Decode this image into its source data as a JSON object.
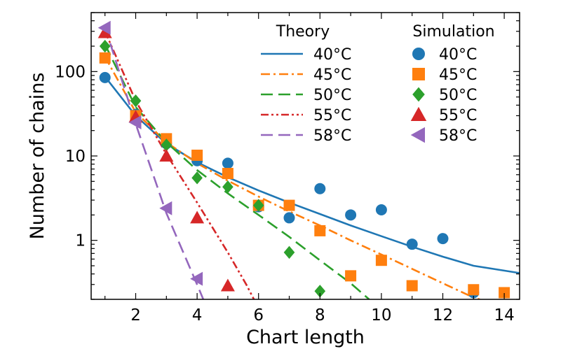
{
  "chart_data": {
    "type": "scatter",
    "xlabel": "Chart length",
    "ylabel": "Number of chains",
    "xlim": [
      0.55,
      14.5
    ],
    "ylim": [
      0.2,
      500
    ],
    "yscale": "log",
    "xticks": [
      2,
      4,
      6,
      8,
      10,
      12,
      14
    ],
    "yticks": [
      1,
      10,
      100
    ],
    "ytick_labels": [
      "1",
      "10",
      "100"
    ],
    "legend_theory_title": "Theory",
    "legend_sim_title": "Simulation",
    "series": [
      {
        "name": "40°C",
        "color": "#1f77b4",
        "marker": "circle",
        "line_style": "solid",
        "simulation": [
          [
            1,
            85
          ],
          [
            2,
            31
          ],
          [
            3,
            14
          ],
          [
            4,
            8.8
          ],
          [
            5,
            8.2
          ],
          [
            6,
            2.5
          ],
          [
            7,
            1.85
          ],
          [
            8,
            4.1
          ],
          [
            9,
            2.0
          ],
          [
            10,
            2.3
          ],
          [
            11,
            0.9
          ],
          [
            12,
            1.05
          ],
          [
            13,
            0.24
          ]
        ],
        "theory": [
          [
            1,
            87
          ],
          [
            2,
            30
          ],
          [
            3,
            14
          ],
          [
            4,
            8.4
          ],
          [
            5,
            5.6
          ],
          [
            6,
            3.9
          ],
          [
            7,
            2.8
          ],
          [
            8,
            2.05
          ],
          [
            9,
            1.5
          ],
          [
            10,
            1.12
          ],
          [
            11,
            0.84
          ],
          [
            12,
            0.64
          ],
          [
            13,
            0.5
          ],
          [
            14.5,
            0.41
          ]
        ]
      },
      {
        "name": "45°C",
        "color": "#ff7f0e",
        "marker": "square",
        "line_style": "dashdot",
        "simulation": [
          [
            1,
            145
          ],
          [
            2,
            30
          ],
          [
            3,
            16
          ],
          [
            4,
            10.2
          ],
          [
            5,
            6.2
          ],
          [
            6,
            2.6
          ],
          [
            7,
            2.6
          ],
          [
            8,
            1.3
          ],
          [
            9,
            0.38
          ],
          [
            10,
            0.58
          ],
          [
            11,
            0.29
          ],
          [
            13,
            0.26
          ],
          [
            14,
            0.24
          ]
        ],
        "theory": [
          [
            1,
            150
          ],
          [
            2,
            33
          ],
          [
            3,
            14.5
          ],
          [
            4,
            8.2
          ],
          [
            5,
            5.1
          ],
          [
            6,
            3.3
          ],
          [
            7,
            2.2
          ],
          [
            8,
            1.5
          ],
          [
            9,
            1.0
          ],
          [
            10,
            0.68
          ],
          [
            11,
            0.46
          ],
          [
            12,
            0.31
          ],
          [
            13,
            0.21
          ],
          [
            13.2,
            0.2
          ]
        ]
      },
      {
        "name": "50°C",
        "color": "#2ca02c",
        "marker": "diamond",
        "line_style": "dashed",
        "simulation": [
          [
            1,
            200
          ],
          [
            2,
            45
          ],
          [
            3,
            13.5
          ],
          [
            4,
            5.5
          ],
          [
            5,
            4.3
          ],
          [
            6,
            2.6
          ],
          [
            7,
            0.72
          ],
          [
            8,
            0.25
          ]
        ],
        "theory": [
          [
            1,
            210
          ],
          [
            2,
            38
          ],
          [
            3,
            14.5
          ],
          [
            4,
            6.8
          ],
          [
            5,
            3.6
          ],
          [
            6,
            2.0
          ],
          [
            7,
            1.1
          ],
          [
            8,
            0.58
          ],
          [
            9,
            0.31
          ],
          [
            9.6,
            0.2
          ]
        ]
      },
      {
        "name": "55°C",
        "color": "#d62728",
        "marker": "triangle-up",
        "line_style": "dashdotdot",
        "simulation": [
          [
            1,
            290
          ],
          [
            2,
            29
          ],
          [
            3,
            10
          ],
          [
            4,
            1.85
          ],
          [
            5,
            0.29
          ]
        ],
        "theory": [
          [
            1,
            300
          ],
          [
            2,
            45
          ],
          [
            3,
            10.5
          ],
          [
            4,
            2.8
          ],
          [
            5,
            0.72
          ],
          [
            5.6,
            0.3
          ],
          [
            5.85,
            0.2
          ]
        ]
      },
      {
        "name": "58°C",
        "color": "#9467bd",
        "marker": "triangle-left",
        "line_style": "dashed",
        "simulation": [
          [
            1,
            330
          ],
          [
            2,
            25
          ],
          [
            3,
            2.4
          ],
          [
            4,
            0.35
          ]
        ],
        "theory": [
          [
            1,
            340
          ],
          [
            2,
            24
          ],
          [
            3,
            2.1
          ],
          [
            4,
            0.3
          ],
          [
            4.2,
            0.2
          ]
        ]
      }
    ]
  }
}
